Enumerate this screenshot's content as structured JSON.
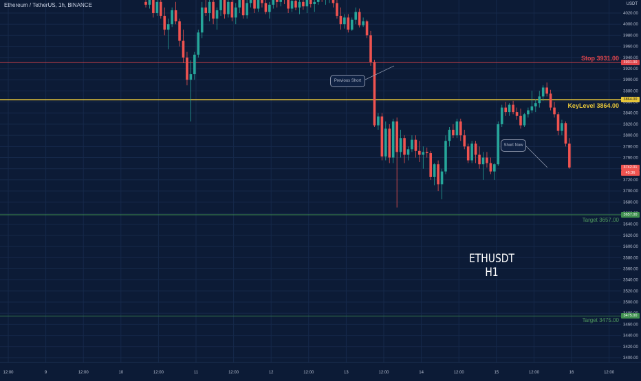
{
  "header": {
    "symbol_title": "Ethereum / TetherUS, 1h, BINANCE",
    "price_axis_currency": "USDT"
  },
  "watermark": {
    "line1": "ETHUSDT",
    "line2": "H1"
  },
  "annotations": {
    "previous_short": "Previous Short",
    "short_now": "Short Now"
  },
  "levels": {
    "stop": {
      "label": "Stop 3931.00",
      "value": 3931,
      "tag": "3931.00",
      "color": "#e0454b"
    },
    "key": {
      "label": "KeyLevel 3864.00",
      "value": 3864,
      "tag": "3864.00",
      "color": "#e8c73a"
    },
    "target1": {
      "label": "Target 3657.00",
      "value": 3657,
      "tag": "3657.00",
      "color": "#3f8f4f"
    },
    "target2": {
      "label": "Target 3475.00",
      "value": 3475,
      "tag": "3475.00",
      "color": "#3f8f4f"
    }
  },
  "last_price": {
    "tag": "3742.01",
    "countdown": "45:36",
    "value": 3742,
    "color": "#ef5350"
  },
  "colors": {
    "up": "#26a69a",
    "down": "#ef5350",
    "background": "#0c1b36",
    "grid": "#16294a"
  },
  "chart_data": {
    "type": "candlestick",
    "title": "Ethereum / TetherUS, 1h, BINANCE",
    "ylim": [
      3380,
      4040
    ],
    "y_ticks": [
      4020,
      4000,
      3980,
      3960,
      3940,
      3920,
      3900,
      3880,
      3860,
      3840,
      3820,
      3800,
      3780,
      3760,
      3740,
      3720,
      3700,
      3680,
      3660,
      3640,
      3620,
      3600,
      3580,
      3560,
      3540,
      3520,
      3500,
      3480,
      3460,
      3440,
      3420,
      3400
    ],
    "x_ticks": [
      "12:00",
      "9",
      "12:00",
      "10",
      "12:00",
      "11",
      "12:00",
      "12",
      "12:00",
      "13",
      "12:00",
      "14",
      "12:00",
      "15",
      "12:00",
      "16",
      "12:00"
    ],
    "grid": true,
    "candles_ohlc": [
      [
        4040,
        4050,
        4030,
        4035
      ],
      [
        4035,
        4050,
        4028,
        4046
      ],
      [
        4046,
        4052,
        4012,
        4020
      ],
      [
        4020,
        4044,
        4015,
        4040
      ],
      [
        4040,
        4050,
        4010,
        4015
      ],
      [
        4015,
        4030,
        3980,
        3990
      ],
      [
        3990,
        4010,
        3955,
        4000
      ],
      [
        4000,
        4030,
        3995,
        4025
      ],
      [
        4025,
        4040,
        4000,
        4005
      ],
      [
        4005,
        4010,
        3960,
        3970
      ],
      [
        3970,
        3990,
        3930,
        3940
      ],
      [
        3940,
        3950,
        3890,
        3900
      ],
      [
        3900,
        3935,
        3825,
        3910
      ],
      [
        3910,
        3950,
        3900,
        3945
      ],
      [
        3945,
        3990,
        3940,
        3985
      ],
      [
        3985,
        4040,
        3975,
        4030
      ],
      [
        4030,
        4048,
        4015,
        4020
      ],
      [
        4020,
        4050,
        4005,
        4040
      ],
      [
        4040,
        4050,
        4000,
        4010
      ],
      [
        4010,
        4030,
        3990,
        4025
      ],
      [
        4025,
        4050,
        4015,
        4045
      ],
      [
        4045,
        4050,
        4010,
        4018
      ],
      [
        4018,
        4048,
        4012,
        4040
      ],
      [
        4040,
        4050,
        4005,
        4012
      ],
      [
        4012,
        4038,
        4000,
        4030
      ],
      [
        4030,
        4052,
        4020,
        4045
      ],
      [
        4045,
        4050,
        4010,
        4016
      ],
      [
        4016,
        4044,
        4010,
        4038
      ],
      [
        4038,
        4055,
        4030,
        4048
      ],
      [
        4048,
        4055,
        4020,
        4028
      ],
      [
        4028,
        4050,
        4022,
        4046
      ],
      [
        4046,
        4056,
        4030,
        4038
      ],
      [
        4038,
        4050,
        4018,
        4022
      ],
      [
        4022,
        4040,
        4010,
        4035
      ],
      [
        4035,
        4055,
        4028,
        4050
      ],
      [
        4050,
        4058,
        4030,
        4040
      ],
      [
        4040,
        4055,
        4032,
        4048
      ],
      [
        4048,
        4056,
        4036,
        4044
      ],
      [
        4044,
        4050,
        4020,
        4028
      ],
      [
        4028,
        4046,
        4022,
        4042
      ],
      [
        4042,
        4050,
        4025,
        4030
      ],
      [
        4030,
        4044,
        4018,
        4040
      ],
      [
        4040,
        4050,
        4026,
        4032
      ],
      [
        4032,
        4048,
        4020,
        4045
      ],
      [
        4045,
        4052,
        4030,
        4036
      ],
      [
        4036,
        4048,
        4022,
        4040
      ],
      [
        4040,
        4060,
        4035,
        4055
      ],
      [
        4055,
        4062,
        4040,
        4048
      ],
      [
        4048,
        4058,
        4035,
        4050
      ],
      [
        4050,
        4062,
        4038,
        4055
      ],
      [
        4055,
        4062,
        4030,
        4038
      ],
      [
        4038,
        4050,
        4010,
        4015
      ],
      [
        4015,
        4030,
        3990,
        4000
      ],
      [
        4000,
        4018,
        3992,
        4012
      ],
      [
        4012,
        4018,
        3985,
        3990
      ],
      [
        3990,
        4012,
        3988,
        4008
      ],
      [
        4008,
        4030,
        4000,
        4022
      ],
      [
        4022,
        4028,
        3994,
        3998
      ],
      [
        3998,
        4012,
        3995,
        4005
      ],
      [
        4005,
        4008,
        3975,
        3980
      ],
      [
        3980,
        3988,
        3925,
        3932
      ],
      [
        3932,
        3936,
        3815,
        3818
      ],
      [
        3818,
        3840,
        3810,
        3834
      ],
      [
        3834,
        3840,
        3755,
        3762
      ],
      [
        3762,
        3825,
        3755,
        3812
      ],
      [
        3812,
        3820,
        3750,
        3760
      ],
      [
        3760,
        3830,
        3750,
        3825
      ],
      [
        3825,
        3832,
        3670,
        3770
      ],
      [
        3770,
        3810,
        3760,
        3795
      ],
      [
        3795,
        3800,
        3750,
        3765
      ],
      [
        3765,
        3780,
        3755,
        3775
      ],
      [
        3775,
        3800,
        3770,
        3792
      ],
      [
        3792,
        3800,
        3760,
        3772
      ],
      [
        3772,
        3790,
        3752,
        3765
      ],
      [
        3765,
        3780,
        3740,
        3770
      ],
      [
        3770,
        3778,
        3760,
        3768
      ],
      [
        3768,
        3772,
        3720,
        3725
      ],
      [
        3725,
        3750,
        3710,
        3748
      ],
      [
        3748,
        3755,
        3700,
        3712
      ],
      [
        3712,
        3740,
        3685,
        3735
      ],
      [
        3735,
        3800,
        3730,
        3790
      ],
      [
        3790,
        3815,
        3780,
        3810
      ],
      [
        3810,
        3820,
        3795,
        3800
      ],
      [
        3800,
        3830,
        3795,
        3825
      ],
      [
        3825,
        3830,
        3790,
        3800
      ],
      [
        3800,
        3810,
        3775,
        3780
      ],
      [
        3780,
        3785,
        3750,
        3755
      ],
      [
        3755,
        3790,
        3750,
        3785
      ],
      [
        3785,
        3790,
        3750,
        3765
      ],
      [
        3765,
        3780,
        3740,
        3748
      ],
      [
        3748,
        3770,
        3720,
        3760
      ],
      [
        3760,
        3770,
        3742,
        3750
      ],
      [
        3750,
        3760,
        3730,
        3735
      ],
      [
        3735,
        3750,
        3720,
        3748
      ],
      [
        3748,
        3825,
        3745,
        3820
      ],
      [
        3820,
        3855,
        3815,
        3850
      ],
      [
        3850,
        3860,
        3835,
        3842
      ],
      [
        3842,
        3858,
        3835,
        3855
      ],
      [
        3855,
        3862,
        3838,
        3842
      ],
      [
        3842,
        3850,
        3828,
        3835
      ],
      [
        3835,
        3848,
        3812,
        3818
      ],
      [
        3818,
        3840,
        3815,
        3838
      ],
      [
        3838,
        3850,
        3832,
        3845
      ],
      [
        3845,
        3880,
        3840,
        3852
      ],
      [
        3852,
        3865,
        3842,
        3858
      ],
      [
        3858,
        3880,
        3850,
        3870
      ],
      [
        3870,
        3890,
        3862,
        3886
      ],
      [
        3886,
        3895,
        3870,
        3875
      ],
      [
        3875,
        3882,
        3845,
        3850
      ],
      [
        3850,
        3860,
        3832,
        3838
      ],
      [
        3838,
        3842,
        3800,
        3808
      ],
      [
        3808,
        3828,
        3800,
        3822
      ],
      [
        3822,
        3825,
        3780,
        3785
      ],
      [
        3785,
        3795,
        3740,
        3742
      ]
    ]
  }
}
